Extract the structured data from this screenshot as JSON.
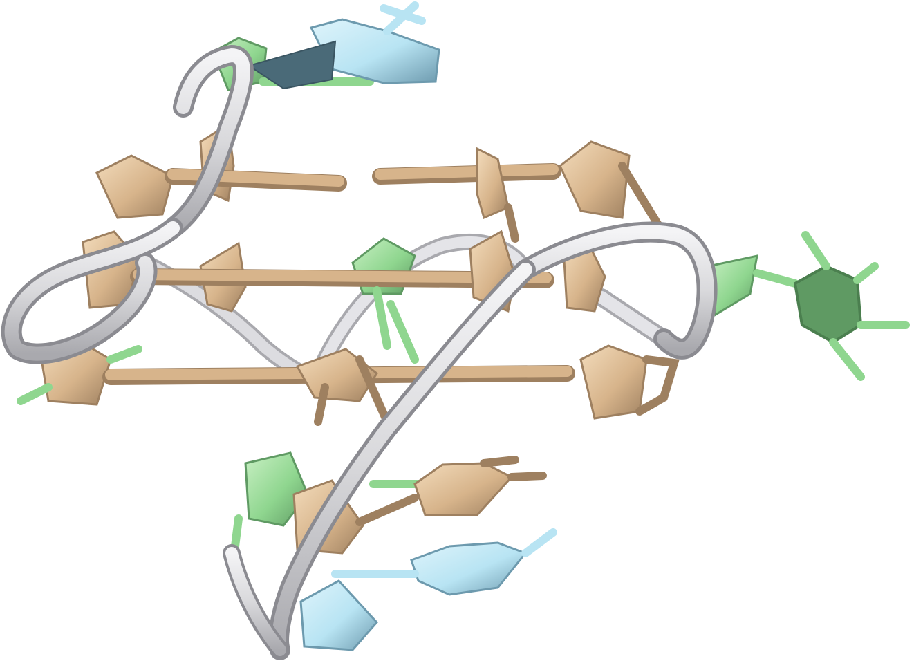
{
  "scene": {
    "subject": "nucleic-acid-g-quadruplex-cartoon",
    "background_color": "#ffffff",
    "colors": {
      "backbone": "#d9d9dc",
      "backbone_shade": "#a9a9ae",
      "guanine": "#d7b48b",
      "guanine_light": "#f3dcbc",
      "guanine_dark": "#9e8060",
      "thymine": "#8fd68f",
      "thymine_light": "#c9f0c4",
      "thymine_dark": "#5f9a63",
      "cytosine": "#b8e4f3",
      "cytosine_light": "#dff4fb",
      "cytosine_dark": "#6d9aae"
    }
  }
}
